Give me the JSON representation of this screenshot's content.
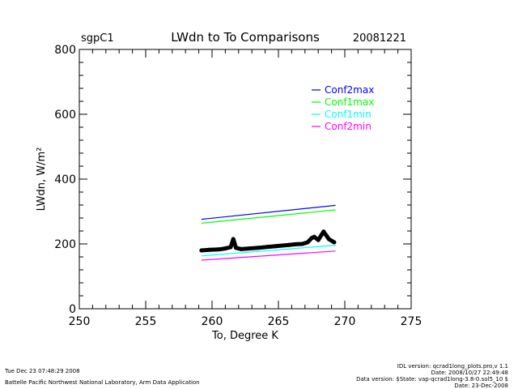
{
  "header": {
    "site": "sgpC1",
    "title": "LWdn to To Comparisons",
    "date": "20081221"
  },
  "footer": {
    "left_line1": "Tue Dec 23 07:48:29 2008",
    "left_line2": "Battelle Pacific Northwest National Laboratory, Arm Data Application",
    "right_line1": "IDL version: qcrad1long_plots.pro,v 1.1",
    "right_line2": "Date: 2008/10/27 22:49:48",
    "right_line3": "Data version: $State: vap-qcrad1long-3.8-0.sol5_10 $",
    "right_line4": "Date: 23-Dec-2008"
  },
  "chart_data": {
    "type": "line",
    "title": "LWdn to To Comparisons",
    "xlabel": "To, Degree K",
    "ylabel": "LWdn, W/m²",
    "xlim": [
      250,
      275
    ],
    "ylim": [
      0,
      800
    ],
    "xticks": [
      250,
      255,
      260,
      265,
      270,
      275
    ],
    "yticks": [
      0,
      200,
      400,
      600,
      800
    ],
    "grid": false,
    "legend_position": "top-right",
    "series": [
      {
        "name": "Conf2max",
        "color": "#0000ff",
        "x": [
          259.2,
          269.3
        ],
        "y": [
          276,
          319
        ]
      },
      {
        "name": "Conf1max",
        "color": "#00ff00",
        "x": [
          259.2,
          269.3
        ],
        "y": [
          264,
          305
        ]
      },
      {
        "name": "Conf1min",
        "color": "#00ffff",
        "x": [
          259.2,
          269.3
        ],
        "y": [
          163,
          196
        ]
      },
      {
        "name": "Conf2min",
        "color": "#ff00ff",
        "x": [
          259.2,
          269.3
        ],
        "y": [
          150,
          178
        ]
      }
    ],
    "observed": {
      "color": "#000000",
      "x": [
        259.2,
        259.8,
        260.5,
        261.0,
        261.4,
        261.6,
        261.8,
        262.2,
        262.8,
        263.5,
        264.2,
        264.8,
        265.3,
        265.8,
        266.3,
        266.8,
        267.2,
        267.5,
        267.7,
        268.0,
        268.4,
        268.8,
        269.2
      ],
      "y": [
        180,
        182,
        183,
        186,
        190,
        215,
        188,
        184,
        186,
        188,
        191,
        193,
        195,
        197,
        199,
        200,
        205,
        218,
        222,
        212,
        238,
        215,
        205
      ]
    }
  }
}
